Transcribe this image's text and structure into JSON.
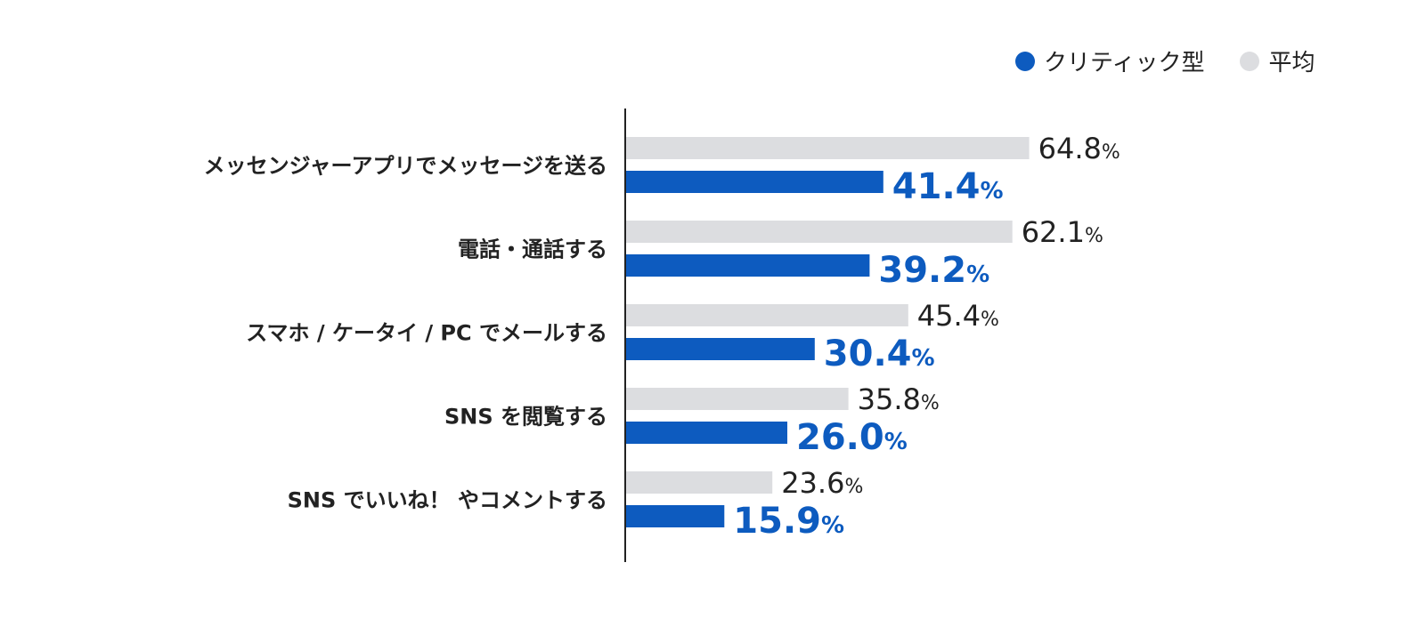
{
  "colors": {
    "critic": "#0d5bbf",
    "average": "#dcdde0",
    "axis": "#222222"
  },
  "chart_data": {
    "type": "bar",
    "orientation": "horizontal",
    "legend_position": "top-right",
    "grid": false,
    "xlim": [
      0,
      100
    ],
    "unit": "%",
    "categories": [
      "メッセンジャーアプリでメッセージを送る",
      "電話・通話する",
      "スマホ / ケータイ / PC でメールする",
      "SNS を閲覧する",
      "SNS でいいね！ やコメントする"
    ],
    "series": [
      {
        "name": "平均",
        "values": [
          64.8,
          62.1,
          45.4,
          35.8,
          23.6
        ]
      },
      {
        "name": "クリティック型",
        "values": [
          41.4,
          39.2,
          30.4,
          26.0,
          15.9
        ]
      }
    ]
  }
}
